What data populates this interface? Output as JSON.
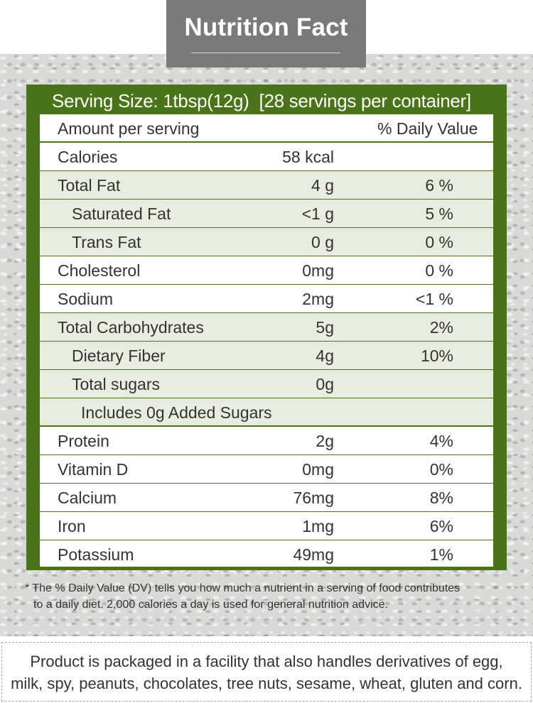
{
  "title": "Nutrition Fact",
  "serving": {
    "size": "Serving Size: 1tbsp(12g)",
    "per_container": "[28 servings per container]"
  },
  "header": {
    "amount": "Amount per serving",
    "daily_value": "% Daily Value"
  },
  "rows": [
    {
      "name": "Calories",
      "value": "58 kcal",
      "dv": ""
    },
    {
      "name": "Total Fat",
      "value": "4 g",
      "dv": "6 %"
    },
    {
      "name": "Saturated Fat",
      "value": "<1 g",
      "dv": "5 %"
    },
    {
      "name": "Trans Fat",
      "value": "0 g",
      "dv": "0 %"
    },
    {
      "name": "Cholesterol",
      "value": "0mg",
      "dv": "0 %"
    },
    {
      "name": "Sodium",
      "value": "2mg",
      "dv": "<1 %"
    },
    {
      "name": "Total Carbohydrates",
      "value": "5g",
      "dv": "2%"
    },
    {
      "name": "Dietary Fiber",
      "value": "4g",
      "dv": "10%"
    },
    {
      "name": "Total sugars",
      "value": "0g",
      "dv": ""
    },
    {
      "name": "Includes 0g Added Sugars",
      "value": "",
      "dv": ""
    },
    {
      "name": "Protein",
      "value": "2g",
      "dv": "4%"
    },
    {
      "name": "Vitamin D",
      "value": "0mg",
      "dv": "0%"
    },
    {
      "name": "Calcium",
      "value": "76mg",
      "dv": "8%"
    },
    {
      "name": "Iron",
      "value": "1mg",
      "dv": "6%"
    },
    {
      "name": "Potassium",
      "value": "49mg",
      "dv": "1%"
    }
  ],
  "footnote": {
    "line1": "* The % Daily Value (DV) tells you how much a nutrient in a serving of food contributes",
    "line2": "to a daily diet. 2,000 calories a day is used for general nutrition advice."
  },
  "allergen": {
    "line1": "Product is packaged in a facility that also handles derivatives of egg,",
    "line2": "milk, spy, peanuts, chocolates, tree nuts, sesame, wheat, gluten and corn."
  },
  "colors": {
    "accent_green": "#4a7418",
    "title_gray": "#7a7a7a",
    "row_shade": "#e9eddf"
  }
}
